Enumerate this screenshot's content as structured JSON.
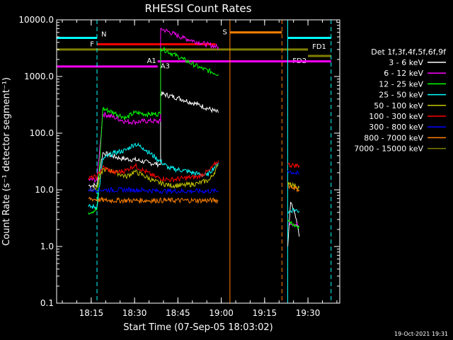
{
  "chart_data": {
    "type": "line",
    "title": "RHESSI Count Rates",
    "xlabel": "Start Time (07-Sep-05 18:03:02)",
    "ylabel": "Count Rate (s⁻¹ detector segment⁻¹)",
    "y_scale": "log",
    "xlim": [
      "18:03:02",
      "19:41:00"
    ],
    "ylim": [
      0.1,
      10000
    ],
    "x_ticks": [
      "18:15",
      "18:30",
      "18:45",
      "19:00",
      "19:15",
      "19:30"
    ],
    "y_ticks": [
      "0.1",
      "1.0",
      "10.0",
      "100.0",
      "1000.0",
      "10000.0"
    ],
    "legend_title": "Det 1f,3f,4f,5f,6f,9f",
    "legend_position": "right",
    "footer": "19-Oct-2021 19:31",
    "series": [
      {
        "name": "3 - 6 keV",
        "color": "#ffffff",
        "segments": [
          [
            [
              "18:14",
              12
            ],
            [
              "18:17",
              12
            ],
            [
              "18:19",
              45
            ],
            [
              "18:25",
              36
            ],
            [
              "18:30",
              34
            ],
            [
              "18:35",
              30
            ],
            [
              "18:39",
              28
            ],
            [
              "18:39",
              500
            ],
            [
              "18:45",
              420
            ],
            [
              "18:52",
              320
            ],
            [
              "18:59",
              230
            ]
          ],
          [
            [
              "19:23",
              1
            ],
            [
              "19:24",
              6
            ],
            [
              "19:26",
              3
            ],
            [
              "19:27",
              1.5
            ]
          ]
        ]
      },
      {
        "name": "6 - 12 keV",
        "color": "#ff00ff",
        "segments": [
          [
            [
              "18:14",
              15
            ],
            [
              "18:17",
              15
            ],
            [
              "18:19",
              220
            ],
            [
              "18:23",
              190
            ],
            [
              "18:27",
              160
            ],
            [
              "18:30",
              158
            ],
            [
              "18:35",
              165
            ],
            [
              "18:39",
              160
            ],
            [
              "18:39",
              7000
            ],
            [
              "18:47",
              4800
            ],
            [
              "18:53",
              3900
            ],
            [
              "18:59",
              3300
            ]
          ],
          [
            [
              "19:23",
              2.8
            ],
            [
              "19:25",
              2.5
            ],
            [
              "19:27",
              2.3
            ]
          ]
        ]
      },
      {
        "name": "12 - 25 keV",
        "color": "#00ff00",
        "segments": [
          [
            [
              "18:14",
              4
            ],
            [
              "18:17",
              4.5
            ],
            [
              "18:19",
              270
            ],
            [
              "18:23",
              230
            ],
            [
              "18:27",
              185
            ],
            [
              "18:30",
              230
            ],
            [
              "18:35",
              215
            ],
            [
              "18:39",
              220
            ],
            [
              "18:39",
              3200
            ],
            [
              "18:47",
              2000
            ],
            [
              "18:53",
              1400
            ],
            [
              "18:59",
              1100
            ]
          ],
          [
            [
              "19:23",
              3
            ],
            [
              "19:25",
              2.5
            ],
            [
              "19:27",
              2.2
            ]
          ]
        ]
      },
      {
        "name": "25 - 50 keV",
        "color": "#00ffff",
        "segments": [
          [
            [
              "18:14",
              5
            ],
            [
              "18:17",
              5
            ],
            [
              "18:19",
              35
            ],
            [
              "18:23",
              45
            ],
            [
              "18:27",
              50
            ],
            [
              "18:30",
              65
            ],
            [
              "18:33",
              55
            ],
            [
              "18:37",
              38
            ],
            [
              "18:42",
              24
            ],
            [
              "18:47",
              22
            ],
            [
              "18:52",
              19
            ],
            [
              "18:55",
              18
            ],
            [
              "18:59",
              30
            ]
          ],
          [
            [
              "19:23",
              4
            ],
            [
              "19:25",
              4.5
            ],
            [
              "19:27",
              4.2
            ]
          ]
        ]
      },
      {
        "name": "50 - 100 keV",
        "color": "#c8c800",
        "segments": [
          [
            [
              "18:14",
              10
            ],
            [
              "18:17",
              11
            ],
            [
              "18:19",
              23
            ],
            [
              "18:23",
              21
            ],
            [
              "18:27",
              17
            ],
            [
              "18:30",
              21
            ],
            [
              "18:33",
              18
            ],
            [
              "18:37",
              14
            ],
            [
              "18:42",
              12
            ],
            [
              "18:47",
              12
            ],
            [
              "18:52",
              13
            ],
            [
              "18:56",
              15
            ],
            [
              "18:59",
              27
            ]
          ],
          [
            [
              "19:23",
              14
            ],
            [
              "19:25",
              12
            ],
            [
              "19:27",
              11
            ]
          ]
        ]
      },
      {
        "name": "100 - 300 keV",
        "color": "#ff0000",
        "segments": [
          [
            [
              "18:14",
              16
            ],
            [
              "18:17",
              17
            ],
            [
              "18:19",
              25
            ],
            [
              "18:23",
              20
            ],
            [
              "18:27",
              22
            ],
            [
              "18:30",
              27
            ],
            [
              "18:33",
              22
            ],
            [
              "18:37",
              17
            ],
            [
              "18:42",
              15
            ],
            [
              "18:47",
              16
            ],
            [
              "18:52",
              17
            ],
            [
              "18:56",
              22
            ],
            [
              "18:59",
              33
            ]
          ],
          [
            [
              "19:23",
              28
            ],
            [
              "19:25",
              27
            ],
            [
              "19:27",
              27
            ]
          ]
        ]
      },
      {
        "name": "300 - 800 keV",
        "color": "#0000ff",
        "segments": [
          [
            [
              "18:14",
              10
            ],
            [
              "18:20",
              10
            ],
            [
              "18:30",
              10
            ],
            [
              "18:40",
              9.5
            ],
            [
              "18:50",
              9.5
            ],
            [
              "18:59",
              9.5
            ]
          ],
          [
            [
              "19:23",
              22
            ],
            [
              "19:25",
              20
            ],
            [
              "19:27",
              19
            ]
          ]
        ]
      },
      {
        "name": "800 - 7000 keV",
        "color": "#ff8000",
        "segments": [
          [
            [
              "18:14",
              7
            ],
            [
              "18:20",
              6.5
            ],
            [
              "18:30",
              6.5
            ],
            [
              "18:40",
              6.5
            ],
            [
              "18:50",
              6.5
            ],
            [
              "18:59",
              6.5
            ]
          ],
          [
            [
              "19:23",
              12
            ],
            [
              "19:25",
              11
            ],
            [
              "19:27",
              10
            ]
          ]
        ]
      },
      {
        "name": "7000 - 15000 keV",
        "color": "#808000",
        "segments": []
      }
    ],
    "annotations": [
      {
        "label": "N",
        "color": "#00ffff",
        "y": 4800,
        "ranges": [
          [
            "18:03:02",
            "18:17"
          ],
          [
            "19:23",
            "19:38"
          ]
        ]
      },
      {
        "label": "F",
        "color": "#ff0000",
        "y": 3700,
        "ranges": [
          [
            "18:17",
            "18:58"
          ]
        ]
      },
      {
        "label": "S",
        "color": "#ff8000",
        "y": 6000,
        "ranges": [
          [
            "19:03",
            "19:21"
          ]
        ]
      },
      {
        "label": "FD1",
        "color": "#808000",
        "y": 3000,
        "ranges": [
          [
            "18:03:02",
            "19:30"
          ]
        ]
      },
      {
        "label": "FD2",
        "color": "#808000",
        "y": 2300,
        "ranges": [
          [
            "19:30",
            "19:38"
          ]
        ]
      },
      {
        "label": "A1",
        "color": "#ff00ff",
        "y": 1500,
        "ranges": [
          [
            "18:03:02",
            "18:38"
          ]
        ]
      },
      {
        "label": "A3",
        "color": "#ff00ff",
        "y": 1850,
        "ranges": [
          [
            "18:38",
            "19:38"
          ]
        ]
      }
    ],
    "vertical_lines": [
      {
        "x": "18:03:02",
        "color": "#00ffff",
        "style": "dashed"
      },
      {
        "x": "18:17",
        "color": "#00ffff",
        "style": "dashed"
      },
      {
        "x": "19:03",
        "color": "#ff8000",
        "style": "solid"
      },
      {
        "x": "19:21",
        "color": "#ff8000",
        "style": "dashed"
      },
      {
        "x": "19:23",
        "color": "#00ffff",
        "style": "solid"
      },
      {
        "x": "19:38",
        "color": "#00ffff",
        "style": "dashed"
      }
    ]
  }
}
